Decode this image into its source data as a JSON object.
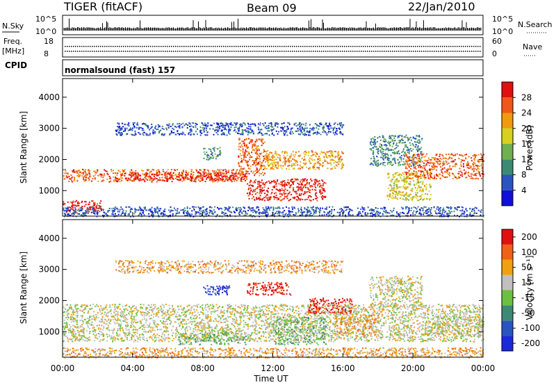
{
  "header": {
    "radar": "TIGER (fitACF)",
    "beam": "Beam 09",
    "date": "22/Jan/2010"
  },
  "status_panels": {
    "nsky_label": "N.Sky",
    "nsky_ticks": [
      "10^5",
      "10^0"
    ],
    "nsearch_label": "N.Search",
    "nsearch_ticks": [
      "10^5",
      "10^0"
    ],
    "freq_label": "Freq.",
    "freq_unit": "[MHz]",
    "freq_ticks": [
      "18",
      "8"
    ],
    "nave_label": "Nave",
    "nave_ticks": [
      "60",
      "0"
    ],
    "cpid_label": "CPID",
    "cpid_value": "normalsound (fast) 157"
  },
  "chart_data": [
    {
      "type": "heatmap",
      "name": "Power",
      "ylabel": "Slant Range [km]",
      "xlabel": "Time UT",
      "xlim_hours": [
        0,
        24
      ],
      "ylim_km": [
        180,
        4600
      ],
      "yticks": [
        "1000",
        "2000",
        "3000",
        "4000"
      ],
      "xticks": [
        "00:00",
        "04:00",
        "08:00",
        "12:00",
        "16:00",
        "20:00",
        "00:00"
      ],
      "colorbar": {
        "label": "Power [dB]",
        "ticks": [
          "4",
          "8",
          "12",
          "16",
          "20",
          "24",
          "28"
        ],
        "colors": [
          "#1010d8",
          "#2a55c0",
          "#3c8a74",
          "#70b050",
          "#d8d020",
          "#f09a10",
          "#f05818",
          "#e01010"
        ]
      },
      "regions": [
        {
          "t0": 0.0,
          "t1": 2.2,
          "r0": 300,
          "r1": 700,
          "level": 7
        },
        {
          "t0": 0.0,
          "t1": 10.5,
          "r0": 1300,
          "r1": 1700,
          "level": 6
        },
        {
          "t0": 3.5,
          "t1": 10.5,
          "r0": 1350,
          "r1": 1600,
          "level": 7
        },
        {
          "t0": 10.5,
          "t1": 15.0,
          "r0": 700,
          "r1": 1400,
          "level": 7
        },
        {
          "t0": 10.0,
          "t1": 11.5,
          "r0": 1500,
          "r1": 2700,
          "level": 6
        },
        {
          "t0": 8.0,
          "t1": 9.0,
          "r0": 2000,
          "r1": 2400,
          "level": 2
        },
        {
          "t0": 11.5,
          "t1": 16.0,
          "r0": 1700,
          "r1": 2300,
          "level": 5
        },
        {
          "t0": 17.5,
          "t1": 20.5,
          "r0": 1800,
          "r1": 2800,
          "level": 2
        },
        {
          "t0": 18.5,
          "t1": 21.0,
          "r0": 700,
          "r1": 1600,
          "level": 4
        },
        {
          "t0": 19.5,
          "t1": 24.0,
          "r0": 1400,
          "r1": 2200,
          "level": 6
        },
        {
          "t0": 0.0,
          "t1": 24.0,
          "r0": 180,
          "r1": 500,
          "level": 1
        },
        {
          "t0": 3.0,
          "t1": 16.0,
          "r0": 2800,
          "r1": 3200,
          "level": 1
        }
      ]
    },
    {
      "type": "heatmap",
      "name": "Velocity",
      "ylabel": "Slant Range [km]",
      "xlabel": "Time UT",
      "xlim_hours": [
        0,
        24
      ],
      "ylim_km": [
        180,
        4600
      ],
      "yticks": [
        "1000",
        "2000",
        "3000",
        "4000"
      ],
      "xticks": [
        "00:00",
        "04:00",
        "08:00",
        "12:00",
        "16:00",
        "20:00",
        "00:00"
      ],
      "colorbar": {
        "label": "Velocity [m s⁻¹]",
        "ticks": [
          "200",
          "100",
          "50",
          "15",
          "-15",
          "-50",
          "-100",
          "-200"
        ],
        "colors": [
          "#1a2ad8",
          "#2a55c0",
          "#3c8a74",
          "#6cc040",
          "#c0c0c0",
          "#f0a010",
          "#f06018",
          "#e01010"
        ]
      },
      "regions": [
        {
          "t0": 0.0,
          "t1": 24.0,
          "r0": 700,
          "r1": 1900,
          "level": 4
        },
        {
          "t0": 6.5,
          "t1": 10.5,
          "r0": 600,
          "r1": 1000,
          "level": 3
        },
        {
          "t0": 8.0,
          "t1": 9.5,
          "r0": 2200,
          "r1": 2500,
          "level": 0
        },
        {
          "t0": 10.5,
          "t1": 13.0,
          "r0": 2200,
          "r1": 2600,
          "level": 7
        },
        {
          "t0": 12.0,
          "t1": 15.0,
          "r0": 600,
          "r1": 1500,
          "level": 3
        },
        {
          "t0": 14.0,
          "t1": 16.5,
          "r0": 1600,
          "r1": 2100,
          "level": 7
        },
        {
          "t0": 15.5,
          "t1": 18.0,
          "r0": 900,
          "r1": 1600,
          "level": 5
        },
        {
          "t0": 17.5,
          "t1": 20.5,
          "r0": 1800,
          "r1": 2800,
          "level": 4
        },
        {
          "t0": 21.0,
          "t1": 24.0,
          "r0": 900,
          "r1": 1500,
          "level": 4
        },
        {
          "t0": 0.0,
          "t1": 24.0,
          "r0": 180,
          "r1": 500,
          "level": 5
        },
        {
          "t0": 3.0,
          "t1": 16.0,
          "r0": 2900,
          "r1": 3300,
          "level": 5
        }
      ]
    }
  ]
}
